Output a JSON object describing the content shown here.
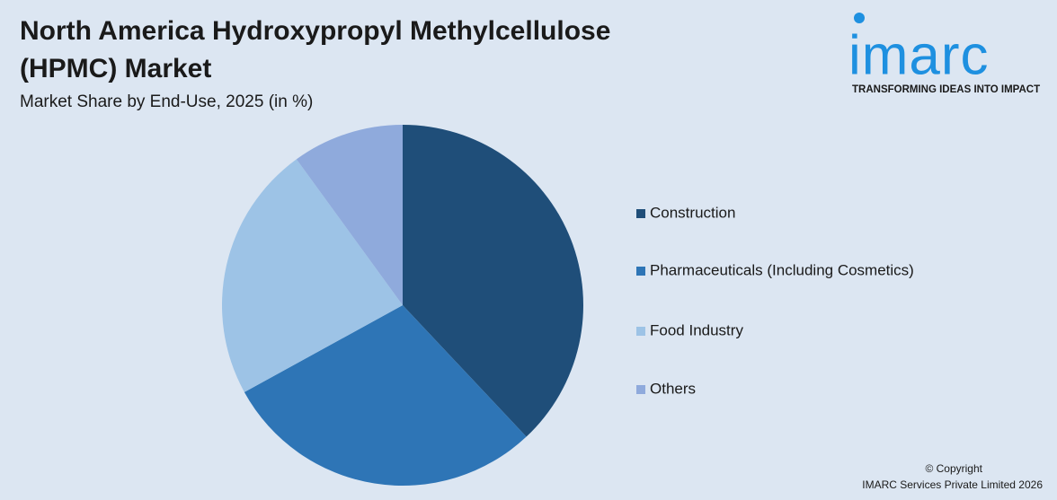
{
  "chart_data": {
    "type": "pie",
    "title": [
      "North America Hydroxypropyl Methylcellulose",
      "(HPMC) Market"
    ],
    "subtitle": "Market Share by End-Use, 2025 (in %)",
    "categories": [
      "Construction",
      "Pharmaceuticals (Including Cosmetics)",
      "Food Industry",
      "Others"
    ],
    "values": [
      38,
      29,
      23,
      10
    ],
    "colors": [
      "#1f4e79",
      "#2e75b6",
      "#9dc3e6",
      "#8faadc"
    ],
    "legend": "right"
  },
  "logo": {
    "name": "imarc",
    "tagline": "TRANSFORMING IDEAS INTO IMPACT"
  },
  "footer": {
    "copyright": "© Copyright",
    "company": "IMARC Services Private Limited 2026"
  }
}
